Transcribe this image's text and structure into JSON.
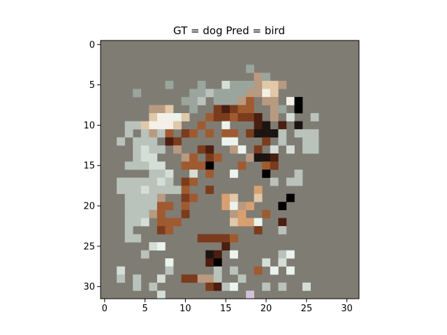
{
  "chart_data": {
    "type": "heatmap",
    "title": "GT = dog Pred = bird",
    "xlabel": "",
    "ylabel": "",
    "xlim": [
      -0.5,
      31.5
    ],
    "ylim": [
      31.5,
      -0.5
    ],
    "x_ticks": [
      0,
      5,
      10,
      15,
      20,
      25,
      30
    ],
    "y_ticks": [
      0,
      5,
      10,
      15,
      20,
      25,
      30
    ],
    "grid": false,
    "background_color": "#7f7c74",
    "palette": {
      "a": "#9aa59d",
      "b": "#b9c2bb",
      "c": "#d4ddd6",
      "d": "#eaf3ee",
      "e": "#b89a80",
      "f": "#e0c8a8",
      "g": "#d8a070",
      "h": "#a05a30",
      "i": "#7a3c1c",
      "j": "#4a1e10",
      "k": "#1c1410",
      "l": "#000000",
      "m": "#d0c0d8",
      "n": "#f4f0e8"
    },
    "rows": [
      "................................",
      "................................",
      "................................",
      "..................a.............",
      "...................ea...........",
      "........a...a..caaaeffe.........",
      "....a......aabaaaaeenf..........",
      "..........aab.aaaeh.ee.nl.......",
      "......eef..a..ijihh..ea.l.......",
      "......fnndf..hiihiij.e.c..b.....",
      "...bbfnnnf..h..d...jk.j.k.......",
      "...b.bebh.ih.h.hh.ikkkb.bbb.....",
      "..b.bbb.ji.....dd...i.b..bb.....",
      "....bcbb.e..ij..ed.i.c.c.bb.....",
      "....bcc...eh.ih...ekkj..........",
      "...bbbcc..hhhl...h..hi..........",
      "......bbc..c.h..d...l...b.......",
      "..bbbbbcb.ih.........b.bb.......",
      "..bbbcbbbbh..i.....g...........",
      "...bbbbe..ih...gf..f...l........",
      "...bbbbhh.h....gdeg...l.........",
      "...bbbeh..i.....eg..h..........",
      "...bbc.hhh......fggd..j.........",
      "...b...ih..........i..b.........",
      "...bb.......iiiih...............",
      "......cd.......j................",
      ".....b.......kj.d.....bd........",
      "........d....jl.....c.c.........",
      "..c.....b.....b.b..h.d.d........",
      "..b.b..c..iieeb..b..............",
      "....b.b......ijbd...b.b..c......",
      ".......c..........m.............",
      "................................"
    ]
  }
}
